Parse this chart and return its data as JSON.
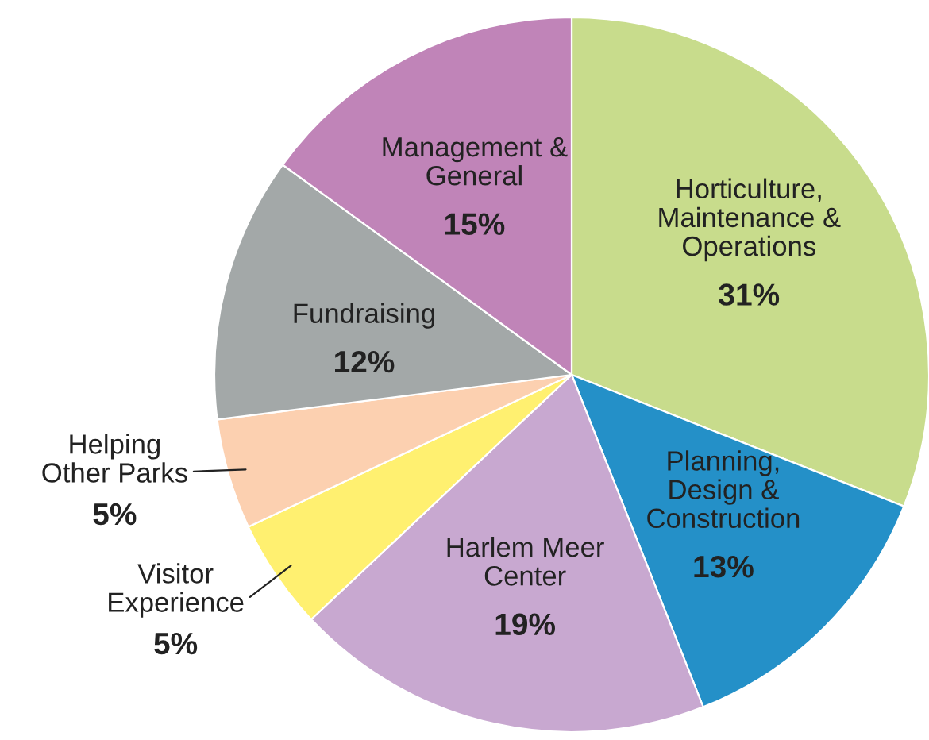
{
  "chart_data": {
    "type": "pie",
    "categories": [
      "Horticulture,\nMaintenance &\nOperations",
      "Planning,\nDesign &\nConstruction",
      "Harlem Meer\nCenter",
      "Visitor\nExperience",
      "Helping\nOther Parks",
      "Fundraising",
      "Management &\nGeneral"
    ],
    "values": [
      31,
      13,
      19,
      5,
      5,
      12,
      15
    ],
    "value_labels": [
      "31%",
      "13%",
      "19%",
      "5%",
      "5%",
      "12%",
      "15%"
    ],
    "colors": [
      "#c8dc8c",
      "#2490c8",
      "#c8a8d0",
      "#fff070",
      "#fcd0b0",
      "#a3a8a8",
      "#c084b8"
    ]
  }
}
